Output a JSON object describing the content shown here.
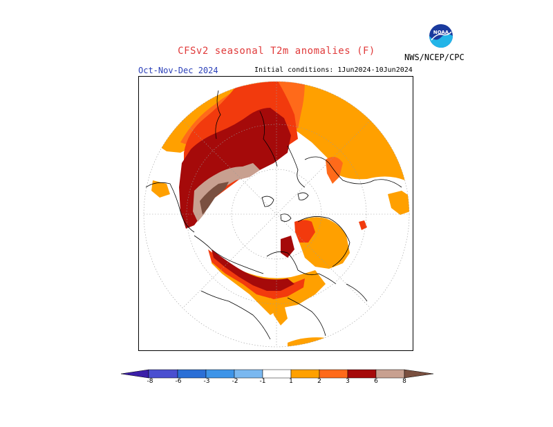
{
  "header": {
    "title": "CFSv2 seasonal T2m anomalies (F)",
    "season": "Oct-Nov-Dec 2024",
    "initial_conditions": "Initial conditions: 1Jun2024-10Jun2024",
    "agency": "NWS/NCEP/CPC",
    "logo_text": "NOAA"
  },
  "colorbar": {
    "labels": [
      "-8",
      "-6",
      "-3",
      "-2",
      "-1",
      "1",
      "2",
      "3",
      "6",
      "8"
    ],
    "colors": [
      "#3b1fa8",
      "#4a4fd0",
      "#2b6fd6",
      "#3d94e8",
      "#7ab8f0",
      "#ffffff",
      "#ffa000",
      "#ff6a1a",
      "#f23a0d",
      "#a50a0a",
      "#c8a090",
      "#7a5040"
    ]
  },
  "map": {
    "projection": "north-polar-stereographic",
    "colors": {
      "orange": "#ffa000",
      "red_orange": "#ff6a1a",
      "red": "#f23a0d",
      "dark_red": "#a50a0a",
      "pink_brown": "#c8a090",
      "brown": "#7a5040"
    }
  }
}
